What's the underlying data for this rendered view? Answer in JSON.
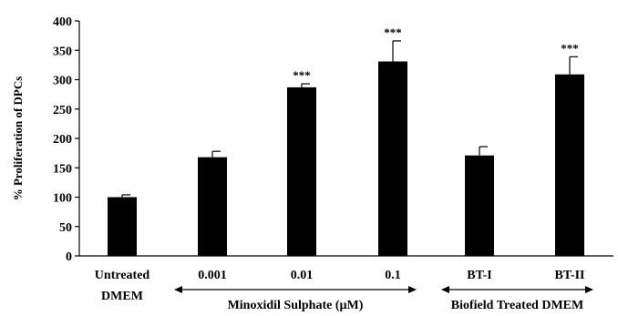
{
  "chart_data": {
    "type": "bar",
    "categories": [
      "Untreated DMEM",
      "0.001",
      "0.01",
      "0.1",
      "BT-I",
      "BT-II"
    ],
    "category_label_lines": [
      [
        "Untreated",
        "DMEM"
      ],
      [
        "0.001"
      ],
      [
        "0.01"
      ],
      [
        "0.1"
      ],
      [
        "BT-I"
      ],
      [
        "BT-II"
      ]
    ],
    "values": [
      100,
      168,
      287,
      331,
      171,
      309
    ],
    "errors": [
      4,
      10,
      6,
      35,
      15,
      30
    ],
    "significance": [
      "",
      "",
      "***",
      "***",
      "",
      "***"
    ],
    "ylabel": "% Proliferation  of DPCs",
    "ylim": [
      0,
      400
    ],
    "yticks": [
      0,
      50,
      100,
      150,
      200,
      250,
      300,
      350,
      400
    ],
    "group_labels": [
      {
        "text": "Minoxidil Sulphate (µM)",
        "from": 1,
        "to": 3
      },
      {
        "text": "Biofield Treated DMEM",
        "from": 4,
        "to": 5
      }
    ],
    "bar_color": "#000000",
    "grid": false,
    "legend": "none"
  }
}
